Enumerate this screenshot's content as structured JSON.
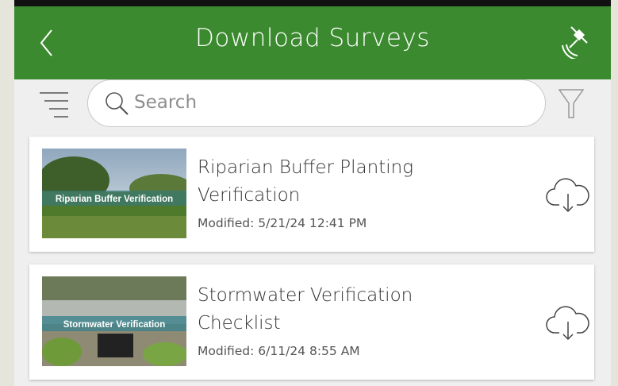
{
  "header": {
    "title": "Download Surveys"
  },
  "search": {
    "placeholder": "Search"
  },
  "surveys": [
    {
      "title": "Riparian Buffer Planting Verification",
      "modified": "Modified: 5/21/24 12:41 PM",
      "thumbnail_label": "Riparian Buffer Verification"
    },
    {
      "title": "Stormwater Verification Checklist",
      "modified": "Modified: 6/11/24 8:55 AM",
      "thumbnail_label": "Stormwater Verification"
    }
  ]
}
